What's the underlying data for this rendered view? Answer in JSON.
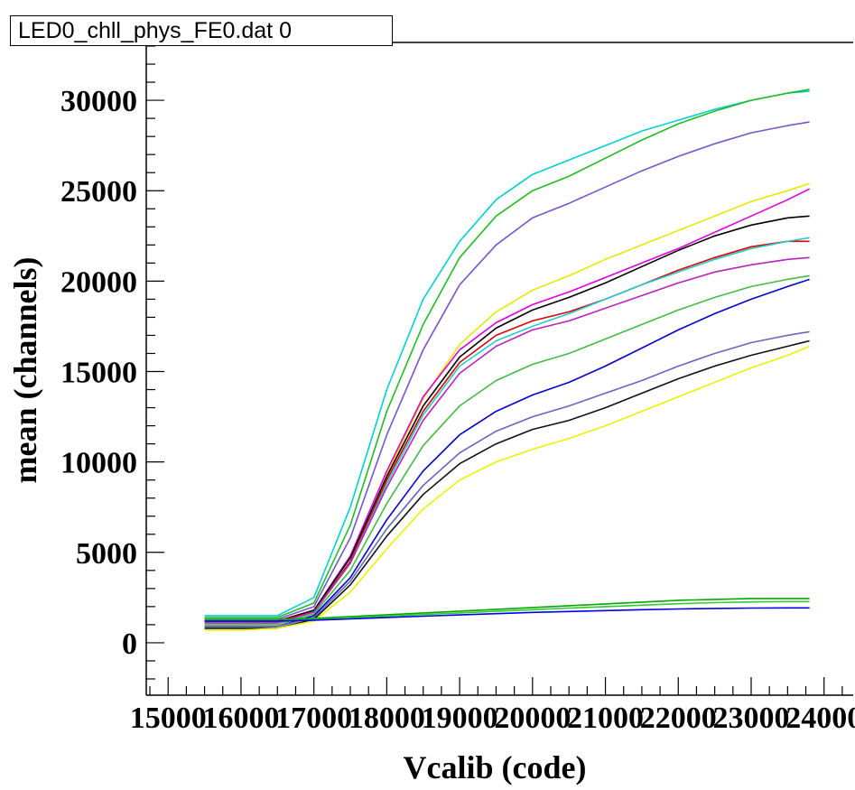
{
  "chart_data": {
    "type": "line",
    "title": "LED0_chll_phys_FE0.dat 0",
    "xlabel": "Vcalib (code)",
    "ylabel": "mean (channels)",
    "xlim": [
      14700,
      24400
    ],
    "ylim": [
      -2900,
      33000
    ],
    "x_ticks": [
      15000,
      16000,
      17000,
      18000,
      19000,
      20000,
      21000,
      22000,
      23000,
      24000
    ],
    "x_tick_labels": [
      "15000",
      "16000",
      "17000",
      "18000",
      "19000",
      "20000",
      "21000",
      "22000",
      "23000",
      "24000"
    ],
    "y_ticks": [
      0,
      5000,
      10000,
      15000,
      20000,
      25000,
      30000
    ],
    "y_tick_labels": [
      "0",
      "5000",
      "10000",
      "15000",
      "20000",
      "25000",
      "30000"
    ],
    "grid": false,
    "legend": "none",
    "x": [
      15500,
      16000,
      16500,
      17000,
      17500,
      18000,
      18500,
      19000,
      19500,
      20000,
      20500,
      21000,
      21500,
      22000,
      22500,
      23000,
      23500,
      23800
    ],
    "series": [
      {
        "color": "#00d0d0",
        "values": [
          1500,
          1500,
          1500,
          2500,
          7500,
          14000,
          19000,
          22200,
          24500,
          25900,
          26700,
          27500,
          28300,
          28900,
          29500,
          30000,
          30400,
          30500
        ]
      },
      {
        "color": "#22bb22",
        "values": [
          1400,
          1400,
          1400,
          2200,
          6500,
          12800,
          17600,
          21300,
          23600,
          25000,
          25800,
          26800,
          27800,
          28700,
          29400,
          30000,
          30400,
          30600
        ]
      },
      {
        "color": "#7755cc",
        "values": [
          1300,
          1300,
          1300,
          2000,
          5800,
          11500,
          16200,
          19800,
          22000,
          23500,
          24300,
          25200,
          26100,
          26900,
          27600,
          28200,
          28600,
          28800
        ]
      },
      {
        "color": "#e8e800",
        "values": [
          1000,
          1000,
          1100,
          1700,
          4500,
          9300,
          13500,
          16500,
          18300,
          19500,
          20300,
          21200,
          22000,
          22800,
          23600,
          24400,
          25000,
          25400
        ]
      },
      {
        "color": "#dd00dd",
        "values": [
          1200,
          1200,
          1200,
          1800,
          4800,
          9500,
          13600,
          16200,
          17700,
          18700,
          19400,
          20200,
          21000,
          21800,
          22700,
          23600,
          24500,
          25100
        ]
      },
      {
        "color": "#000000",
        "values": [
          1200,
          1200,
          1200,
          1800,
          4700,
          9200,
          13100,
          15800,
          17400,
          18400,
          19100,
          19900,
          20800,
          21700,
          22500,
          23100,
          23500,
          23600
        ]
      },
      {
        "color": "#dd0000",
        "values": [
          1200,
          1200,
          1200,
          1700,
          4500,
          9000,
          12800,
          15500,
          17000,
          17800,
          18300,
          19000,
          19800,
          20600,
          21300,
          21900,
          22200,
          22200
        ]
      },
      {
        "color": "#22cccc",
        "values": [
          1100,
          1100,
          1100,
          1700,
          4400,
          8800,
          12600,
          15300,
          16700,
          17500,
          18200,
          19000,
          19800,
          20500,
          21200,
          21800,
          22200,
          22400
        ]
      },
      {
        "color": "#bb22bb",
        "values": [
          1100,
          1100,
          1100,
          1700,
          4400,
          8600,
          12300,
          14900,
          16400,
          17300,
          17800,
          18500,
          19200,
          19900,
          20500,
          20900,
          21200,
          21300
        ]
      },
      {
        "color": "#44bb44",
        "values": [
          1000,
          1000,
          1000,
          1600,
          4000,
          7700,
          10900,
          13100,
          14500,
          15400,
          16000,
          16800,
          17600,
          18400,
          19100,
          19700,
          20100,
          20300
        ]
      },
      {
        "color": "#0000cc",
        "values": [
          900,
          900,
          900,
          1500,
          3600,
          6800,
          9500,
          11500,
          12800,
          13700,
          14400,
          15300,
          16300,
          17300,
          18200,
          19000,
          19700,
          20100
        ]
      },
      {
        "color": "#6666bb",
        "values": [
          900,
          900,
          900,
          1400,
          3400,
          6300,
          8700,
          10500,
          11700,
          12500,
          13100,
          13800,
          14500,
          15300,
          16000,
          16600,
          17000,
          17200
        ]
      },
      {
        "color": "#111111",
        "values": [
          800,
          800,
          800,
          1300,
          3200,
          5900,
          8200,
          9900,
          11000,
          11800,
          12300,
          13000,
          13800,
          14600,
          15300,
          15900,
          16400,
          16700
        ]
      },
      {
        "color": "#f0f000",
        "values": [
          700,
          700,
          800,
          1200,
          2800,
          5200,
          7400,
          9000,
          10000,
          10700,
          11300,
          12000,
          12800,
          13600,
          14400,
          15200,
          15900,
          16400
        ]
      },
      {
        "color": "#00aa00",
        "values": [
          1300,
          1300,
          1300,
          1350,
          1450,
          1550,
          1650,
          1750,
          1850,
          1950,
          2050,
          2150,
          2250,
          2350,
          2400,
          2450,
          2450,
          2450
        ]
      },
      {
        "color": "#33cc33",
        "values": [
          1200,
          1200,
          1200,
          1280,
          1380,
          1470,
          1560,
          1650,
          1740,
          1830,
          1920,
          2000,
          2080,
          2160,
          2220,
          2260,
          2280,
          2280
        ]
      },
      {
        "color": "#0000ee",
        "values": [
          1200,
          1200,
          1200,
          1250,
          1320,
          1400,
          1470,
          1540,
          1610,
          1680,
          1730,
          1780,
          1830,
          1870,
          1900,
          1920,
          1930,
          1930
        ]
      }
    ]
  }
}
